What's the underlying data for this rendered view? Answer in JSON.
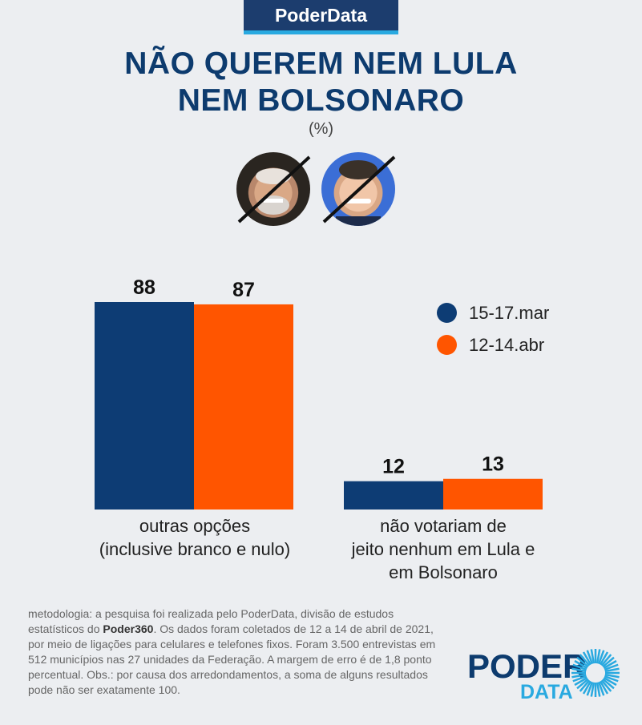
{
  "badge": "PoderData",
  "title_line1": "NÃO QUEREM NEM LULA",
  "title_line2": "NEM BOLSONARO",
  "unit": "(%)",
  "colors": {
    "navy": "#0d3c74",
    "orange": "#ff5500",
    "title": "#0d3b6e",
    "accent": "#29a9e0"
  },
  "chart_data": {
    "type": "bar",
    "categories": [
      "outras opções (inclusive branco e nulo)",
      "não votariam de jeito nenhum em Lula e em Bolsonaro"
    ],
    "series": [
      {
        "name": "15-17.mar",
        "values": [
          88,
          12
        ]
      },
      {
        "name": "12-14.abr",
        "values": [
          87,
          13
        ]
      }
    ],
    "ylim": [
      0,
      100
    ],
    "grid": false,
    "legend": "right"
  },
  "category_labels": [
    [
      "outras opções",
      "(inclusive branco e nulo)"
    ],
    [
      "não votariam de",
      "jeito nenhum em Lula e",
      "em Bolsonaro"
    ]
  ],
  "methodology": {
    "part1": "metodologia: a pesquisa foi realizada pelo PoderData, divisão de estudos estatísticos do ",
    "bold": "Poder360",
    "part2": ". Os dados foram coletados de 12 a 14 de abril de 2021, por meio de ligações para celulares e telefones fixos. Foram 3.500 entrevistas em 512 municípios nas 27 unidades da Federação. A margem de erro é de 1,8 ponto percentual. Obs.: por causa dos arredondamentos, a soma de alguns resultados pode não ser exatamente 100."
  },
  "logo": {
    "top": "PODER",
    "bottom": "DATA"
  }
}
